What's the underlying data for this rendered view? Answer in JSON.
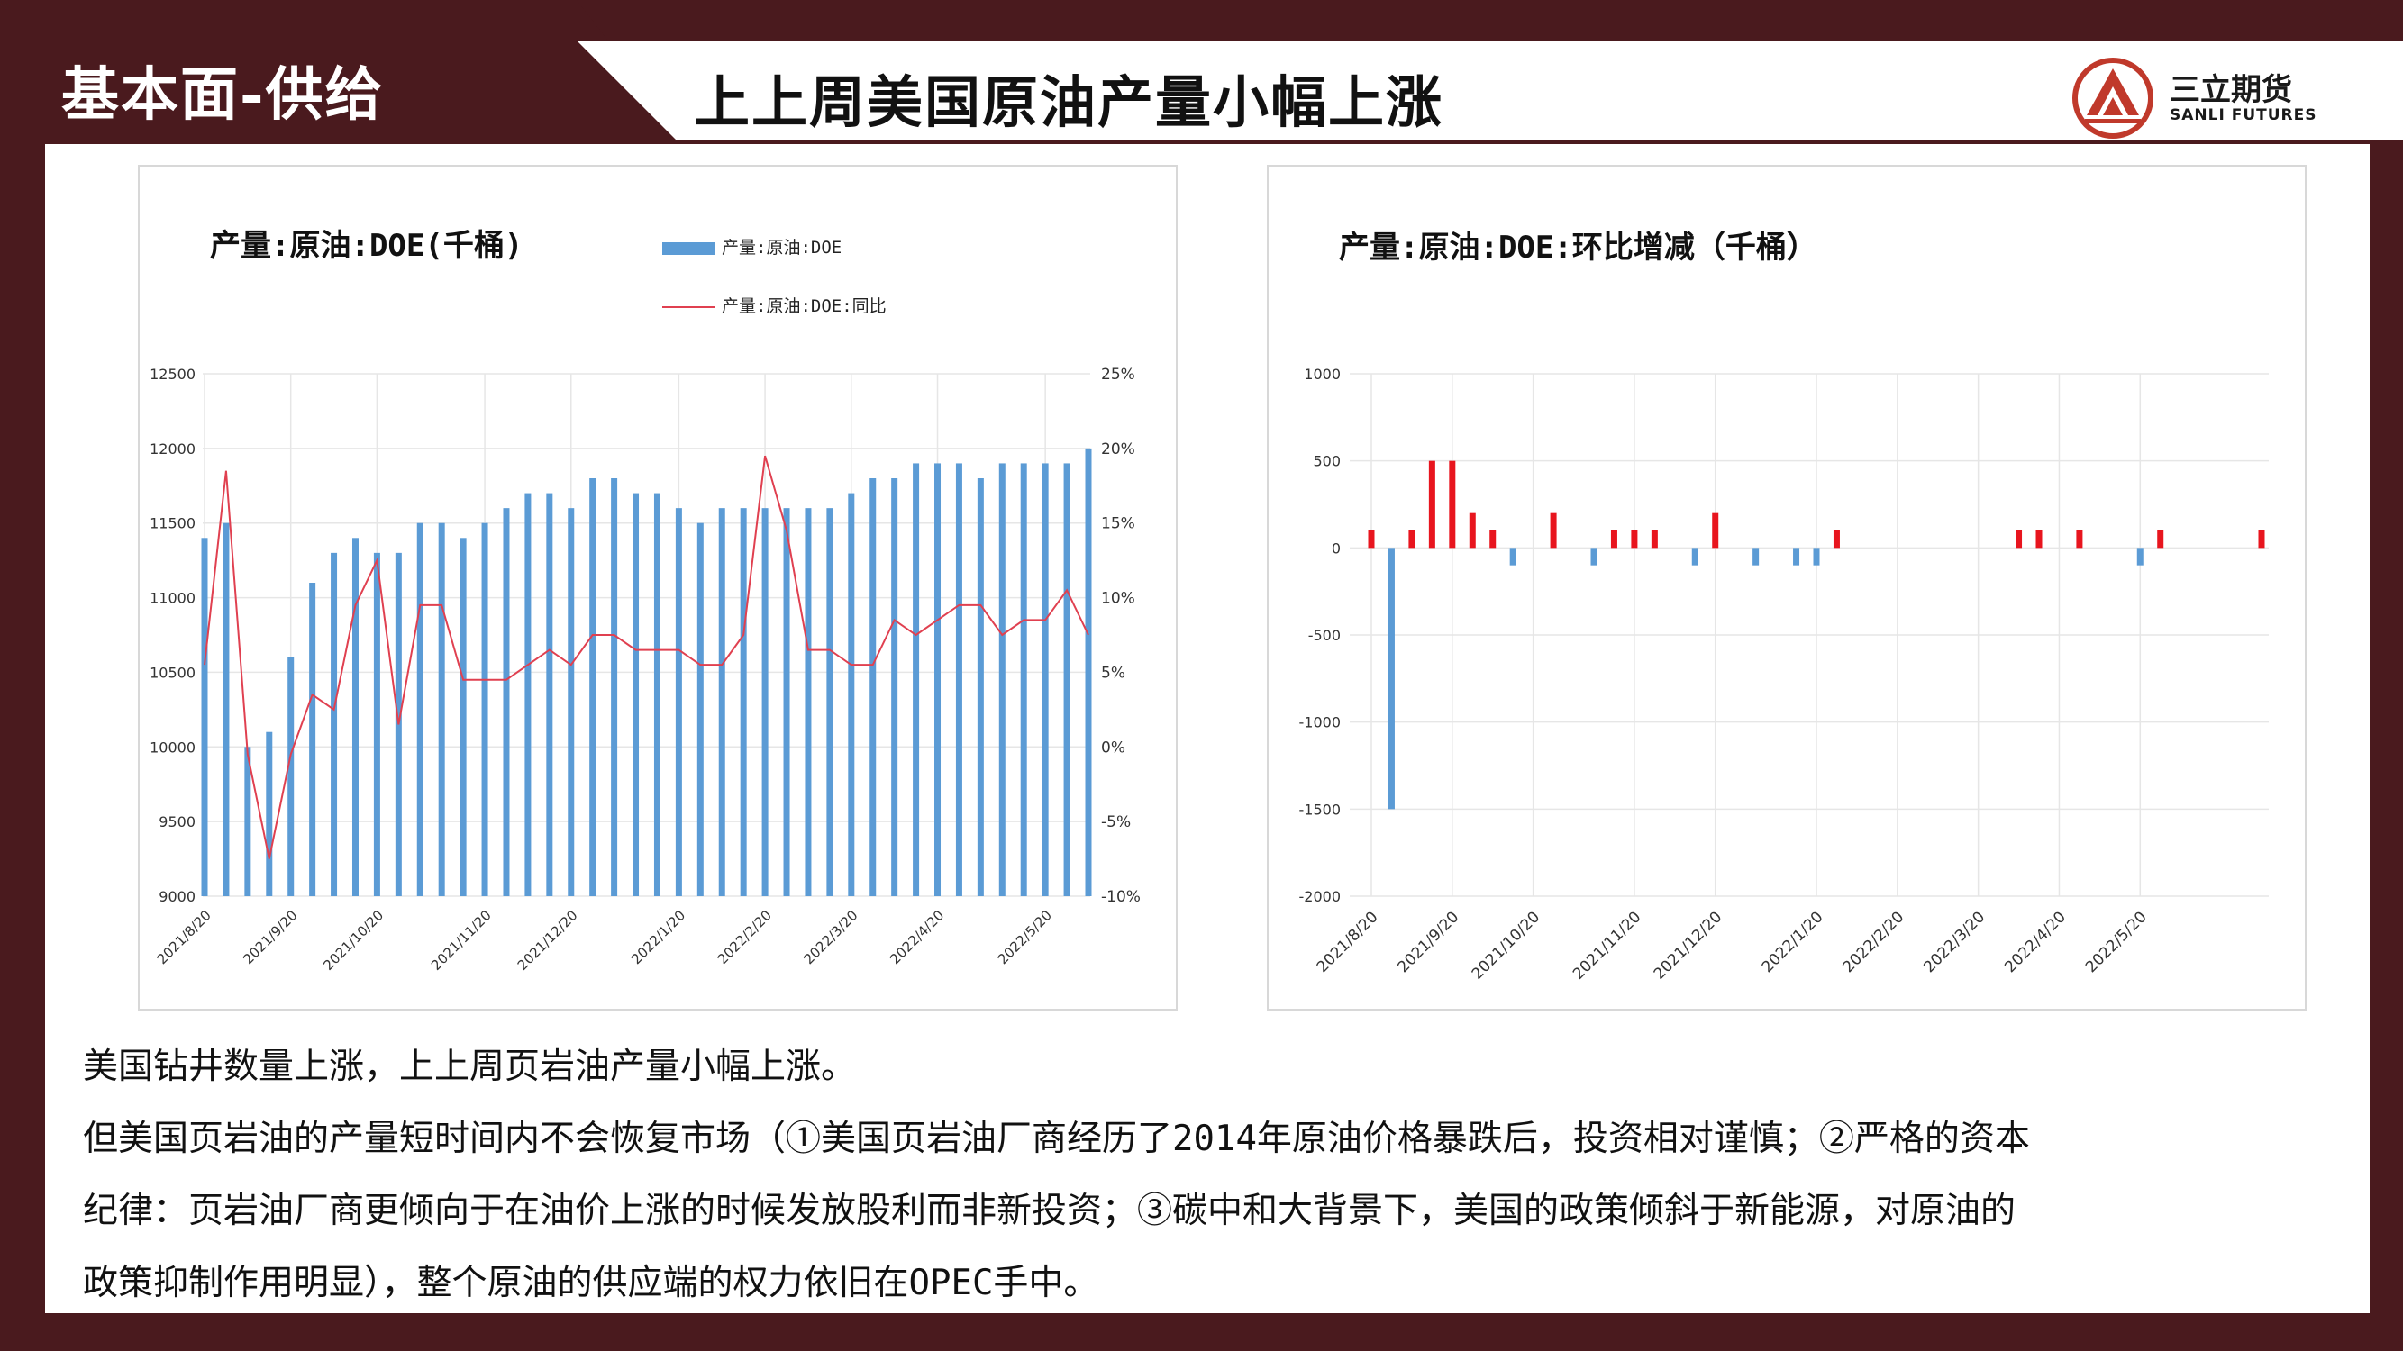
{
  "header": {
    "section_label": "基本面-供给",
    "title": "上上周美国原油产量小幅上涨",
    "logo_cn": "三立期货",
    "logo_en": "SANLI FUTURES"
  },
  "colors": {
    "frame": "#4a1a1e",
    "bar_blue": "#5b9bd5",
    "line_red": "#e04050",
    "bar_red": "#e8151e",
    "logo_red": "#c0392b"
  },
  "chart_data": [
    {
      "type": "bar",
      "title": "产量:原油:DOE(千桶)",
      "series": [
        {
          "name": "产量:原油:DOE",
          "type": "bar",
          "axis": "left",
          "values": [
            11400,
            11500,
            10000,
            10100,
            10600,
            11100,
            11300,
            11400,
            11300,
            11300,
            11500,
            11500,
            11400,
            11500,
            11600,
            11700,
            11700,
            11600,
            11800,
            11800,
            11700,
            11700,
            11600,
            11500,
            11600,
            11600,
            11600,
            11600,
            11600,
            11600,
            11700,
            11800,
            11800,
            11900,
            11900,
            11900,
            11800,
            11900,
            11900,
            11900,
            11900,
            12000
          ]
        },
        {
          "name": "产量:原油:DOE:同比",
          "type": "line",
          "axis": "right",
          "values": [
            5.5,
            18.5,
            -0.5,
            -7.5,
            -0.5,
            3.5,
            2.5,
            9.5,
            12.5,
            1.5,
            9.5,
            9.5,
            4.5,
            4.5,
            4.5,
            5.5,
            6.5,
            5.5,
            7.5,
            7.5,
            6.5,
            6.5,
            6.5,
            5.5,
            5.5,
            7.5,
            19.5,
            14.5,
            6.5,
            6.5,
            5.5,
            5.5,
            8.5,
            7.5,
            8.5,
            9.5,
            9.5,
            7.5,
            8.5,
            8.5,
            10.5,
            7.5
          ]
        }
      ],
      "x_ticks": [
        "2021/8/20",
        "2021/9/20",
        "2021/10/20",
        "2021/11/20",
        "2021/12/20",
        "2022/1/20",
        "2022/2/20",
        "2022/3/20",
        "2022/4/20",
        "2022/5/20"
      ],
      "ylim": [
        9000,
        12500
      ],
      "y_ticks": [
        "9000",
        "9500",
        "10000",
        "10500",
        "11000",
        "11500",
        "12000",
        "12500"
      ],
      "y2lim": [
        -10,
        25
      ],
      "y2_ticks": [
        "-10%",
        "-5%",
        "0%",
        "5%",
        "10%",
        "15%",
        "20%",
        "25%"
      ],
      "grid": true,
      "legend": "top-right"
    },
    {
      "type": "bar",
      "title": "产量:原油:DOE:环比增减（千桶）",
      "series": [
        {
          "name": "",
          "values": [
            100,
            -1500,
            100,
            500,
            500,
            200,
            100,
            -100,
            0,
            200,
            0,
            -100,
            100,
            100,
            100,
            0,
            -100,
            200,
            0,
            -100,
            0,
            -100,
            -100,
            100,
            0,
            0,
            0,
            0,
            0,
            0,
            0,
            0,
            100,
            100,
            0,
            100,
            0,
            0,
            -100,
            100,
            0,
            0,
            0,
            0,
            100
          ]
        }
      ],
      "x_ticks": [
        "2021/8/20",
        "2021/9/20",
        "2021/10/20",
        "2021/11/20",
        "2021/12/20",
        "2022/1/20",
        "2022/2/20",
        "2022/3/20",
        "2022/4/20",
        "2022/5/20"
      ],
      "ylim": [
        -2000,
        1000
      ],
      "y_ticks": [
        "1000",
        "500",
        "0",
        "-500",
        "-1000",
        "-1500",
        "-2000"
      ],
      "positive_color": "#e8151e",
      "negative_color": "#5b9bd5",
      "grid": true
    }
  ],
  "body": {
    "line1": "美国钻井数量上涨，上上周页岩油产量小幅上涨。",
    "line2": "但美国页岩油的产量短时间内不会恢复市场（①美国页岩油厂商经历了2014年原油价格暴跌后，投资相对谨慎；②严格的资本",
    "line3": "纪律：页岩油厂商更倾向于在油价上涨的时候发放股利而非新投资；③碳中和大背景下，美国的政策倾斜于新能源，对原油的",
    "line4": "政策抑制作用明显），整个原油的供应端的权力依旧在OPEC手中。"
  }
}
